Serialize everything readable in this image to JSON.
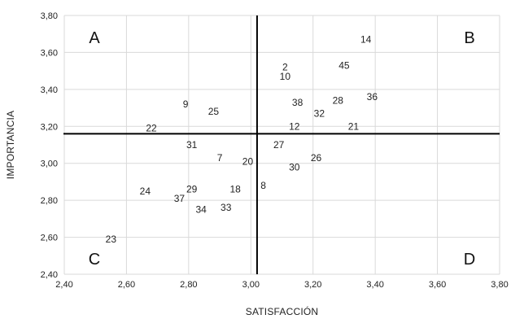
{
  "chart_data": {
    "type": "scatter",
    "xlabel": "SATISFACCIÓN",
    "ylabel": "IMPORTANCIA",
    "xlim": [
      2.4,
      3.8
    ],
    "ylim": [
      2.4,
      3.8
    ],
    "x_ticks": [
      "2,40",
      "2,60",
      "2,80",
      "3,00",
      "3,20",
      "3,40",
      "3,60",
      "3,80"
    ],
    "y_ticks": [
      "2,40",
      "2,60",
      "2,80",
      "3,00",
      "3,20",
      "3,40",
      "3,60",
      "3,80"
    ],
    "grid": true,
    "reference_lines": {
      "x": 3.02,
      "y": 3.16
    },
    "quadrants": [
      {
        "label": "A",
        "position": "top-left"
      },
      {
        "label": "B",
        "position": "top-right"
      },
      {
        "label": "C",
        "position": "bottom-left"
      },
      {
        "label": "D",
        "position": "bottom-right"
      }
    ],
    "points": [
      {
        "label": "14",
        "x": 3.37,
        "y": 3.67
      },
      {
        "label": "45",
        "x": 3.3,
        "y": 3.53
      },
      {
        "label": "2",
        "x": 3.11,
        "y": 3.52
      },
      {
        "label": "10",
        "x": 3.11,
        "y": 3.47
      },
      {
        "label": "36",
        "x": 3.39,
        "y": 3.36
      },
      {
        "label": "9",
        "x": 2.79,
        "y": 3.32
      },
      {
        "label": "38",
        "x": 3.15,
        "y": 3.33
      },
      {
        "label": "28",
        "x": 3.28,
        "y": 3.34
      },
      {
        "label": "25",
        "x": 2.88,
        "y": 3.28
      },
      {
        "label": "32",
        "x": 3.22,
        "y": 3.27
      },
      {
        "label": "22",
        "x": 2.68,
        "y": 3.19
      },
      {
        "label": "12",
        "x": 3.14,
        "y": 3.2
      },
      {
        "label": "21",
        "x": 3.33,
        "y": 3.2
      },
      {
        "label": "31",
        "x": 2.81,
        "y": 3.1
      },
      {
        "label": "27",
        "x": 3.09,
        "y": 3.1
      },
      {
        "label": "7",
        "x": 2.9,
        "y": 3.03
      },
      {
        "label": "20",
        "x": 2.99,
        "y": 3.01
      },
      {
        "label": "26",
        "x": 3.21,
        "y": 3.03
      },
      {
        "label": "30",
        "x": 3.14,
        "y": 2.98
      },
      {
        "label": "8",
        "x": 3.04,
        "y": 2.88
      },
      {
        "label": "24",
        "x": 2.66,
        "y": 2.85
      },
      {
        "label": "29",
        "x": 2.81,
        "y": 2.86
      },
      {
        "label": "18",
        "x": 2.95,
        "y": 2.86
      },
      {
        "label": "37",
        "x": 2.77,
        "y": 2.81
      },
      {
        "label": "34",
        "x": 2.84,
        "y": 2.75
      },
      {
        "label": "33",
        "x": 2.92,
        "y": 2.76
      },
      {
        "label": "23",
        "x": 2.55,
        "y": 2.59
      }
    ]
  }
}
